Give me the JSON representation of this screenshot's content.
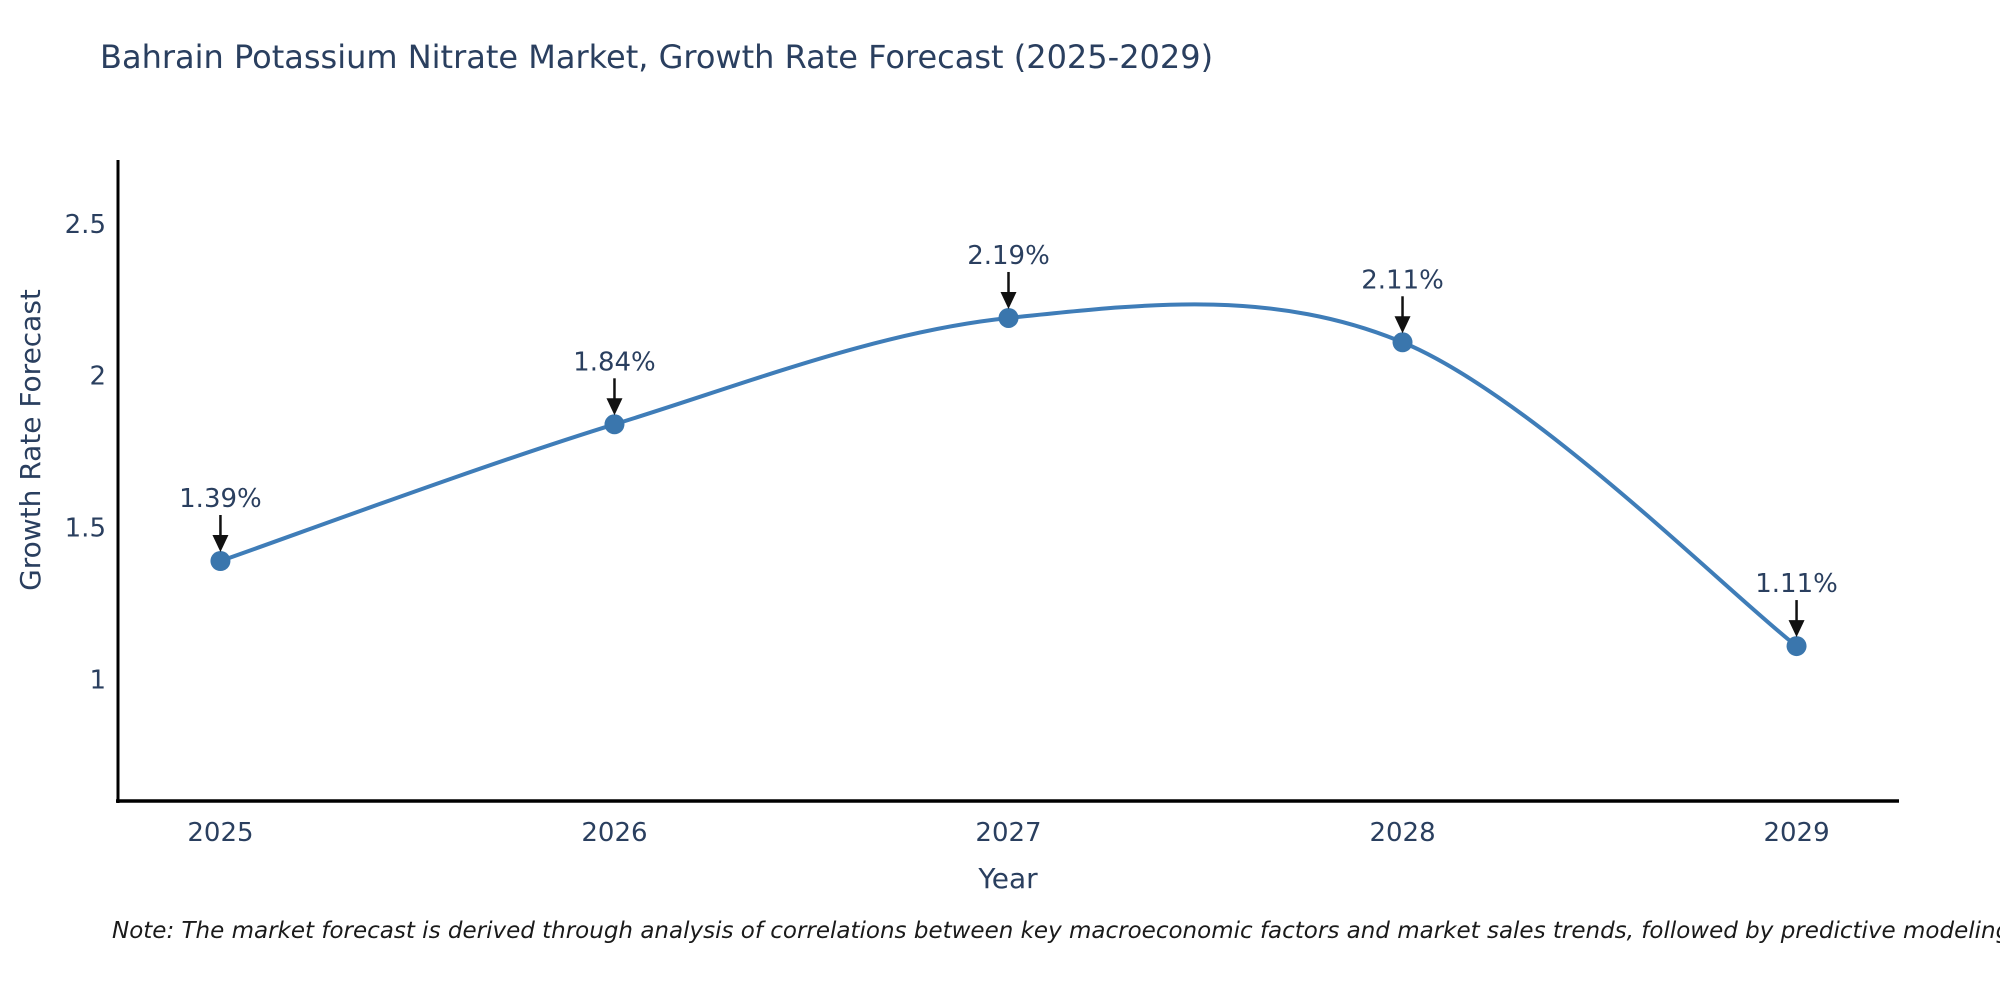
{
  "chart_data": {
    "type": "line",
    "title": "Bahrain Potassium Nitrate Market, Growth Rate Forecast (2025-2029)",
    "xlabel": "Year",
    "ylabel": "Growth Rate Forecast",
    "x": [
      2025,
      2026,
      2027,
      2028,
      2029
    ],
    "values": [
      1.39,
      1.84,
      2.19,
      2.11,
      1.11
    ],
    "point_labels": [
      "1.39%",
      "1.84%",
      "2.19%",
      "2.11%",
      "1.11%"
    ],
    "xtick_labels": [
      "2025",
      "2026",
      "2027",
      "2028",
      "2029"
    ],
    "ytick_values": [
      1,
      1.5,
      2,
      2.5
    ],
    "ytick_labels": [
      "1",
      "1.5",
      "2",
      "2.5"
    ],
    "xlim": [
      2024.74,
      2029.26
    ],
    "ylim": [
      0.6,
      2.71
    ],
    "grid": false,
    "legend": "none",
    "line_shape": "spline",
    "annotation_arrows": true
  },
  "note": "Note: The market forecast is derived through analysis of correlations between key macroeconomic factors and market sales trends, followed by predictive modeling to project future sales",
  "colors": {
    "line": "#3f7db8",
    "marker": "#3a76ad",
    "axis": "#000000",
    "text": "#2a3f5f",
    "arrow": "#111111",
    "background": "#ffffff"
  }
}
